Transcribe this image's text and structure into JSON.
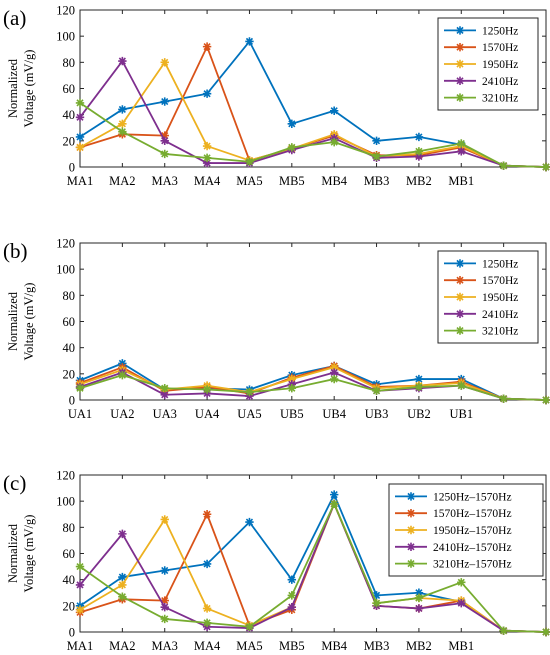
{
  "chart_data": [
    {
      "type": "line",
      "panel_label": "(a)",
      "ylabel_lines": [
        "Normalized",
        "Voltage (mV/g)"
      ],
      "categories": [
        "MA1",
        "MA2",
        "MA3",
        "MA4",
        "MA5",
        "MB5",
        "MB4",
        "MB3",
        "MB2",
        "MB1",
        "",
        ""
      ],
      "ylim": [
        0,
        120
      ],
      "yticks": [
        0,
        20,
        40,
        60,
        80,
        100,
        120
      ],
      "grid": false,
      "legend_position": "top-right",
      "series": [
        {
          "name": "1250Hz",
          "color": "#0072BD",
          "values": [
            23,
            44,
            50,
            56,
            96,
            33,
            43,
            20,
            23,
            17,
            1,
            0
          ]
        },
        {
          "name": "1570Hz",
          "color": "#D95319",
          "values": [
            15,
            25,
            24,
            92,
            5,
            14,
            24,
            9,
            9,
            15,
            1,
            0
          ]
        },
        {
          "name": "1950Hz",
          "color": "#EDB120",
          "values": [
            15,
            33,
            80,
            16,
            5,
            14,
            25,
            8,
            10,
            16,
            1,
            0
          ]
        },
        {
          "name": "2410Hz",
          "color": "#7E2F8E",
          "values": [
            38,
            81,
            20,
            3,
            3,
            13,
            22,
            7,
            8,
            12,
            1,
            0
          ]
        },
        {
          "name": "3210Hz",
          "color": "#77AC30",
          "values": [
            49,
            27,
            10,
            7,
            4,
            15,
            19,
            8,
            12,
            18,
            1,
            0
          ]
        }
      ]
    },
    {
      "type": "line",
      "panel_label": "(b)",
      "ylabel_lines": [
        "Normalized",
        "Voltage (mV/g)"
      ],
      "categories": [
        "UA1",
        "UA2",
        "UA3",
        "UA4",
        "UA5",
        "UB5",
        "UB4",
        "UB3",
        "UB2",
        "UB1",
        "",
        ""
      ],
      "ylim": [
        0,
        120
      ],
      "yticks": [
        0,
        20,
        40,
        60,
        80,
        100,
        120
      ],
      "grid": false,
      "legend_position": "top-right",
      "series": [
        {
          "name": "1250Hz",
          "color": "#0072BD",
          "values": [
            15,
            28,
            8,
            9,
            8,
            19,
            26,
            12,
            16,
            16,
            1,
            0
          ]
        },
        {
          "name": "1570Hz",
          "color": "#D95319",
          "values": [
            13,
            25,
            7,
            10,
            5,
            17,
            26,
            10,
            11,
            14,
            1,
            0
          ]
        },
        {
          "name": "1950Hz",
          "color": "#EDB120",
          "values": [
            12,
            23,
            8,
            11,
            6,
            16,
            25,
            9,
            11,
            13,
            1,
            0
          ]
        },
        {
          "name": "2410Hz",
          "color": "#7E2F8E",
          "values": [
            10,
            21,
            4,
            5,
            3,
            12,
            21,
            7,
            9,
            11,
            1,
            0
          ]
        },
        {
          "name": "3210Hz",
          "color": "#77AC30",
          "values": [
            9,
            19,
            9,
            8,
            6,
            9,
            16,
            7,
            10,
            11,
            1,
            0
          ]
        }
      ]
    },
    {
      "type": "line",
      "panel_label": "(c)",
      "ylabel_lines": [
        "Normalized",
        "Voltage (mV/g)"
      ],
      "categories": [
        "MA1",
        "MA2",
        "MA3",
        "MA4",
        "MA5",
        "MB5",
        "MB4",
        "MB3",
        "MB2",
        "MB1",
        "",
        ""
      ],
      "ylim": [
        0,
        120
      ],
      "yticks": [
        0,
        20,
        40,
        60,
        80,
        100,
        120
      ],
      "grid": false,
      "legend_position": "top-right",
      "series": [
        {
          "name": "1250Hz–1570Hz",
          "color": "#0072BD",
          "values": [
            20,
            42,
            47,
            52,
            84,
            40,
            105,
            28,
            30,
            23,
            1,
            0
          ]
        },
        {
          "name": "1570Hz–1570Hz",
          "color": "#D95319",
          "values": [
            15,
            25,
            24,
            90,
            5,
            17,
            98,
            20,
            18,
            24,
            1,
            0
          ]
        },
        {
          "name": "1950Hz–1570Hz",
          "color": "#EDB120",
          "values": [
            17,
            36,
            86,
            18,
            5,
            19,
            98,
            22,
            26,
            24,
            1,
            0
          ]
        },
        {
          "name": "2410Hz–1570Hz",
          "color": "#7E2F8E",
          "values": [
            36,
            75,
            19,
            4,
            3,
            19,
            98,
            20,
            18,
            22,
            1,
            0
          ]
        },
        {
          "name": "3210Hz–1570Hz",
          "color": "#77AC30",
          "values": [
            50,
            27,
            10,
            7,
            4,
            28,
            98,
            22,
            26,
            38,
            1,
            0
          ]
        }
      ]
    }
  ]
}
